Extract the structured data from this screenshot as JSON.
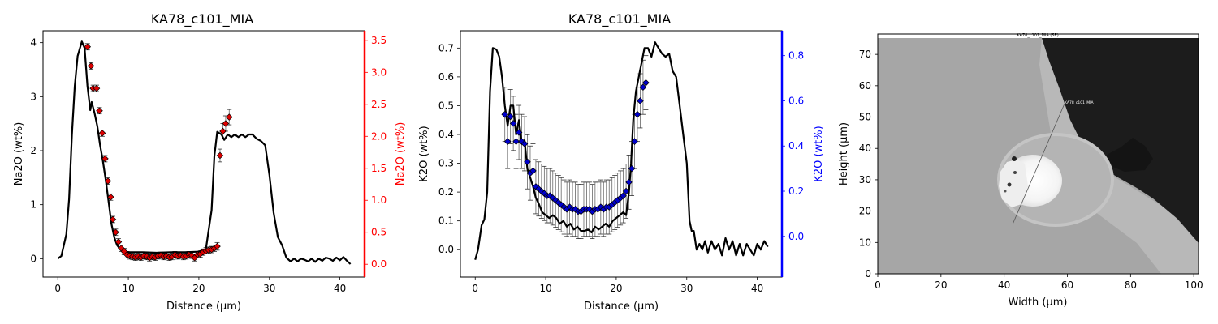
{
  "colors": {
    "model_line": "#000000",
    "na2o_marker": "#dd0000",
    "na2o_axis": "#ff0000",
    "k2o_marker": "#0000cc",
    "k2o_axis": "#0000ff",
    "error_bar": "#666666"
  },
  "chart_data": [
    {
      "type": "line",
      "title": "KA78_c101_MIA",
      "xlabel": "Distance (µm)",
      "ylabel": "Na2O (wt%)",
      "y2label": "Na2O (wt%)",
      "xlim": [
        -2.1,
        43.5
      ],
      "ylim": [
        -0.34,
        4.22
      ],
      "y2lim": [
        -0.2,
        3.65
      ],
      "xticks": [
        0,
        10,
        20,
        30,
        40
      ],
      "yticks": [
        0,
        1,
        2,
        3,
        4
      ],
      "y2ticks": [
        0.0,
        0.5,
        1.0,
        1.5,
        2.0,
        2.5,
        3.0,
        3.5
      ],
      "y2tick_labels": [
        "0.0",
        "0.5",
        "1.0",
        "1.5",
        "2.0",
        "2.5",
        "3.0",
        "3.5"
      ],
      "grid": false,
      "series": [
        {
          "kind": "line",
          "axis": "left",
          "x": [
            0,
            0.5,
            1.2,
            1.6,
            2.0,
            2.4,
            2.8,
            3.4,
            3.8,
            4.2,
            4.6,
            4.8,
            5.2,
            5.6,
            6.0,
            6.4,
            6.8,
            7.2,
            7.6,
            8.0,
            8.4,
            9,
            10,
            12,
            14,
            16,
            18,
            20,
            21,
            21.8,
            22.2,
            22.6,
            23.2,
            23.6,
            24.1,
            24.6,
            25.1,
            25.6,
            26.1,
            26.6,
            27.1,
            27.6,
            28.2,
            28.8,
            29.4,
            30.0,
            30.6,
            31.2,
            31.8,
            32.4,
            33,
            33.5,
            34,
            34.5,
            35,
            35.5,
            36,
            36.5,
            37,
            37.5,
            38,
            38.5,
            39,
            39.5,
            40,
            40.5,
            41,
            41.5
          ],
          "y": [
            0,
            0.05,
            0.45,
            1.1,
            2.3,
            3.2,
            3.75,
            4.02,
            3.9,
            3.2,
            2.75,
            2.9,
            2.7,
            2.45,
            2.1,
            1.8,
            1.45,
            1.05,
            0.65,
            0.4,
            0.25,
            0.15,
            0.12,
            0.12,
            0.11,
            0.12,
            0.12,
            0.13,
            0.18,
            0.9,
            1.9,
            2.35,
            2.3,
            2.2,
            2.3,
            2.25,
            2.3,
            2.25,
            2.3,
            2.25,
            2.3,
            2.3,
            2.22,
            2.18,
            2.1,
            1.55,
            0.85,
            0.4,
            0.25,
            0.02,
            -0.05,
            0,
            -0.05,
            0,
            -0.02,
            -0.05,
            0,
            -0.06,
            0,
            -0.04,
            0.02,
            0,
            -0.04,
            0.02,
            -0.03,
            0.03,
            -0.04,
            -0.1
          ]
        },
        {
          "kind": "scatter_errorbar",
          "axis": "right",
          "marker": "diamond",
          "x": [
            4.2,
            4.7,
            5.0,
            5.5,
            5.9,
            6.3,
            6.7,
            7.1,
            7.5,
            7.8,
            8.2,
            8.6,
            9.0,
            9.4,
            9.8,
            10.2,
            10.6,
            11.0,
            11.4,
            11.8,
            12.2,
            12.6,
            13.0,
            13.4,
            13.8,
            14.2,
            14.6,
            15.0,
            15.4,
            15.8,
            16.2,
            16.6,
            17.0,
            17.4,
            17.8,
            18.2,
            18.6,
            19.0,
            19.4,
            19.8,
            20.2,
            20.6,
            21.0,
            21.4,
            21.8,
            22.2,
            22.6,
            23.0,
            23.4,
            23.8,
            24.3
          ],
          "y": [
            3.4,
            3.1,
            2.75,
            2.75,
            2.4,
            2.05,
            1.65,
            1.3,
            1.05,
            0.7,
            0.5,
            0.35,
            0.25,
            0.2,
            0.15,
            0.13,
            0.12,
            0.11,
            0.12,
            0.11,
            0.13,
            0.12,
            0.1,
            0.12,
            0.11,
            0.13,
            0.14,
            0.12,
            0.13,
            0.11,
            0.12,
            0.15,
            0.13,
            0.14,
            0.12,
            0.13,
            0.15,
            0.14,
            0.1,
            0.15,
            0.16,
            0.19,
            0.21,
            0.22,
            0.23,
            0.25,
            0.28,
            1.7,
            2.08,
            2.2,
            2.3
          ],
          "err": [
            0.05,
            0.05,
            0.05,
            0.05,
            0.05,
            0.05,
            0.05,
            0.05,
            0.05,
            0.05,
            0.05,
            0.05,
            0.05,
            0.05,
            0.05,
            0.05,
            0.05,
            0.05,
            0.05,
            0.05,
            0.05,
            0.05,
            0.05,
            0.05,
            0.05,
            0.05,
            0.05,
            0.05,
            0.05,
            0.05,
            0.05,
            0.05,
            0.05,
            0.05,
            0.05,
            0.05,
            0.05,
            0.05,
            0.05,
            0.05,
            0.05,
            0.05,
            0.05,
            0.05,
            0.05,
            0.05,
            0.06,
            0.1,
            0.12,
            0.12,
            0.12
          ]
        }
      ]
    },
    {
      "type": "line",
      "title": "KA78_c101_MIA",
      "xlabel": "Distance (µm)",
      "ylabel": "K2O (wt%)",
      "y2label": "K2O (wt%)",
      "xlim": [
        -2.1,
        43.5
      ],
      "ylim": [
        -0.095,
        0.76
      ],
      "y2lim": [
        -0.18,
        0.91
      ],
      "xticks": [
        0,
        10,
        20,
        30,
        40
      ],
      "yticks": [
        0.0,
        0.1,
        0.2,
        0.3,
        0.4,
        0.5,
        0.6,
        0.7
      ],
      "ytick_labels": [
        "0.0",
        "0.1",
        "0.2",
        "0.3",
        "0.4",
        "0.5",
        "0.6",
        "0.7"
      ],
      "y2ticks": [
        0.0,
        0.2,
        0.4,
        0.6,
        0.8
      ],
      "y2tick_labels": [
        "0.0",
        "0.2",
        "0.4",
        "0.6",
        "0.8"
      ],
      "grid": false,
      "series": [
        {
          "kind": "line",
          "axis": "left",
          "x": [
            0,
            0.4,
            0.9,
            1.3,
            1.7,
            2.1,
            2.5,
            3.0,
            3.4,
            3.8,
            4.2,
            4.6,
            5.0,
            5.4,
            5.8,
            6.2,
            6.6,
            7.0,
            7.4,
            7.8,
            8.2,
            8.6,
            9.0,
            9.5,
            10,
            10.5,
            11,
            11.5,
            12,
            12.5,
            13,
            13.5,
            14,
            14.5,
            15,
            15.5,
            16,
            16.5,
            17,
            17.5,
            18,
            18.5,
            19,
            19.5,
            20,
            20.5,
            21,
            21.4,
            21.8,
            22.1,
            22.4,
            22.8,
            23.2,
            23.6,
            24.0,
            24.5,
            25.0,
            25.5,
            26.0,
            26.5,
            27.0,
            27.5,
            28.0,
            28.5,
            29.0,
            29.5,
            30.0,
            30.4,
            30.7,
            31.0,
            31.4,
            31.8,
            32.2,
            32.6,
            33,
            33.5,
            34,
            34.5,
            35,
            35.5,
            36,
            36.5,
            37,
            37.5,
            38,
            38.5,
            39,
            39.5,
            40,
            40.5,
            41,
            41.5
          ],
          "y": [
            -0.035,
            0.0,
            0.085,
            0.105,
            0.2,
            0.55,
            0.7,
            0.695,
            0.67,
            0.6,
            0.5,
            0.43,
            0.5,
            0.5,
            0.4,
            0.45,
            0.37,
            0.38,
            0.28,
            0.25,
            0.22,
            0.18,
            0.16,
            0.13,
            0.12,
            0.11,
            0.12,
            0.11,
            0.09,
            0.1,
            0.08,
            0.09,
            0.07,
            0.08,
            0.065,
            0.065,
            0.07,
            0.06,
            0.08,
            0.07,
            0.08,
            0.09,
            0.08,
            0.1,
            0.11,
            0.12,
            0.13,
            0.12,
            0.2,
            0.3,
            0.45,
            0.55,
            0.6,
            0.65,
            0.7,
            0.7,
            0.67,
            0.72,
            0.7,
            0.68,
            0.67,
            0.68,
            0.62,
            0.6,
            0.5,
            0.4,
            0.3,
            0.1,
            0.065,
            0.065,
            0.0,
            0.02,
            0.0,
            0.03,
            -0.01,
            0.03,
            0.0,
            0.02,
            -0.02,
            0.04,
            0.0,
            0.03,
            -0.02,
            0.02,
            -0.02,
            0.02,
            0.0,
            -0.02,
            0.02,
            0.0,
            0.03,
            0.01
          ]
        },
        {
          "kind": "scatter_errorbar",
          "axis": "right",
          "marker": "diamond",
          "x": [
            4.2,
            4.6,
            5.0,
            5.4,
            5.8,
            6.2,
            6.6,
            7.0,
            7.4,
            7.8,
            8.2,
            8.6,
            9.0,
            9.4,
            9.8,
            10.2,
            10.6,
            11.0,
            11.4,
            11.8,
            12.2,
            12.6,
            13.0,
            13.4,
            13.8,
            14.2,
            14.6,
            15.0,
            15.4,
            15.8,
            16.2,
            16.6,
            17.0,
            17.4,
            17.8,
            18.2,
            18.6,
            19.0,
            19.4,
            19.8,
            20.2,
            20.6,
            21.0,
            21.4,
            21.8,
            22.2,
            22.6,
            23.0,
            23.4,
            23.8,
            24.2
          ],
          "y": [
            0.54,
            0.42,
            0.53,
            0.5,
            0.42,
            0.46,
            0.42,
            0.41,
            0.33,
            0.28,
            0.29,
            0.22,
            0.21,
            0.2,
            0.19,
            0.18,
            0.18,
            0.17,
            0.16,
            0.15,
            0.14,
            0.13,
            0.12,
            0.13,
            0.12,
            0.12,
            0.11,
            0.11,
            0.12,
            0.12,
            0.12,
            0.11,
            0.12,
            0.12,
            0.13,
            0.12,
            0.13,
            0.13,
            0.14,
            0.15,
            0.16,
            0.17,
            0.18,
            0.2,
            0.24,
            0.3,
            0.42,
            0.54,
            0.6,
            0.66,
            0.68
          ],
          "err": [
            0.12,
            0.12,
            0.12,
            0.12,
            0.12,
            0.12,
            0.12,
            0.12,
            0.12,
            0.12,
            0.12,
            0.12,
            0.12,
            0.12,
            0.12,
            0.12,
            0.12,
            0.12,
            0.12,
            0.12,
            0.12,
            0.12,
            0.12,
            0.12,
            0.12,
            0.12,
            0.12,
            0.12,
            0.12,
            0.12,
            0.12,
            0.12,
            0.12,
            0.12,
            0.12,
            0.12,
            0.12,
            0.12,
            0.12,
            0.12,
            0.12,
            0.12,
            0.12,
            0.12,
            0.12,
            0.12,
            0.12,
            0.12,
            0.12,
            0.12,
            0.12
          ]
        }
      ]
    }
  ],
  "image_panel": {
    "xlabel": "Width (µm)",
    "ylabel": "Height (µm)",
    "xlim": [
      0,
      101.5
    ],
    "ylim": [
      0,
      76.5
    ],
    "xticks": [
      0,
      20,
      40,
      60,
      80,
      100
    ],
    "yticks": [
      0,
      10,
      20,
      30,
      40,
      50,
      60,
      70
    ],
    "caption": "KA78_c101_MIA (SE)",
    "line_label": "KA78_c101_MIA"
  }
}
